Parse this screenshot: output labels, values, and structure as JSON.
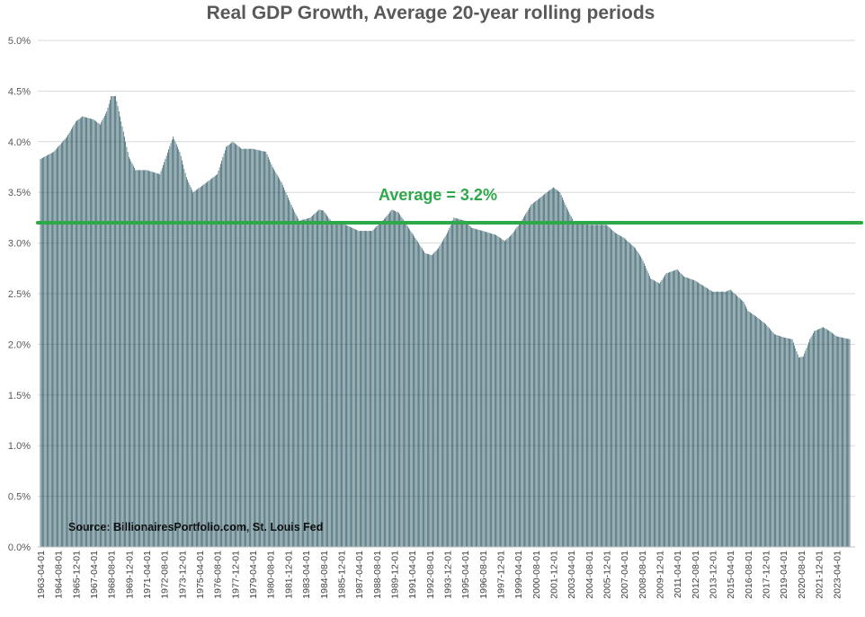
{
  "chart_data": {
    "type": "bar",
    "title": "Real GDP Growth, Average 20-year rolling periods",
    "xlabel": "",
    "ylabel": "",
    "ylim": [
      0,
      5.0
    ],
    "y_ticks": [
      "0.0%",
      "0.5%",
      "1.0%",
      "1.5%",
      "2.0%",
      "2.5%",
      "3.0%",
      "3.5%",
      "4.0%",
      "4.5%",
      "5.0%"
    ],
    "y_tick_values": [
      0,
      0.5,
      1.0,
      1.5,
      2.0,
      2.5,
      3.0,
      3.5,
      4.0,
      4.5,
      5.0
    ],
    "x_tick_labels": [
      "1963-04-01",
      "1964-08-01",
      "1965-12-01",
      "1967-04-01",
      "1968-08-01",
      "1969-12-01",
      "1971-04-01",
      "1972-08-01",
      "1973-12-01",
      "1975-04-01",
      "1976-08-01",
      "1977-12-01",
      "1979-04-01",
      "1980-08-01",
      "1981-12-01",
      "1983-04-01",
      "1984-08-01",
      "1985-12-01",
      "1987-04-01",
      "1988-08-01",
      "1989-12-01",
      "1991-04-01",
      "1992-08-01",
      "1993-12-01",
      "1995-04-01",
      "1996-08-01",
      "1997-12-01",
      "1999-04-01",
      "2000-08-01",
      "2001-12-01",
      "2003-04-01",
      "2004-08-01",
      "2005-12-01",
      "2007-04-01",
      "2008-08-01",
      "2009-12-01",
      "2011-04-01",
      "2012-08-01",
      "2013-12-01",
      "2015-04-01",
      "2016-08-01",
      "2017-12-01",
      "2019-04-01",
      "2020-08-01",
      "2021-12-01",
      "2023-04-01"
    ],
    "series": [
      {
        "color": "#1f4e5a",
        "x_start": "1963-04-01",
        "frequency": "monthly",
        "anchors": [
          [
            "1963-04-01",
            3.83
          ],
          [
            "1964-04-01",
            3.9
          ],
          [
            "1965-04-01",
            4.05
          ],
          [
            "1965-12-01",
            4.2
          ],
          [
            "1966-06-01",
            4.25
          ],
          [
            "1967-04-01",
            4.22
          ],
          [
            "1967-10-01",
            4.17
          ],
          [
            "1968-04-01",
            4.3
          ],
          [
            "1968-08-01",
            4.45
          ],
          [
            "1968-12-01",
            4.45
          ],
          [
            "1969-06-01",
            4.15
          ],
          [
            "1969-12-01",
            3.85
          ],
          [
            "1970-06-01",
            3.72
          ],
          [
            "1971-04-01",
            3.72
          ],
          [
            "1972-04-01",
            3.68
          ],
          [
            "1972-08-01",
            3.8
          ],
          [
            "1973-04-01",
            4.05
          ],
          [
            "1973-10-01",
            3.9
          ],
          [
            "1974-04-01",
            3.65
          ],
          [
            "1974-10-01",
            3.5
          ],
          [
            "1975-08-01",
            3.58
          ],
          [
            "1976-08-01",
            3.68
          ],
          [
            "1977-04-01",
            3.95
          ],
          [
            "1977-10-01",
            4.0
          ],
          [
            "1978-06-01",
            3.93
          ],
          [
            "1979-04-01",
            3.93
          ],
          [
            "1980-04-01",
            3.9
          ],
          [
            "1980-10-01",
            3.75
          ],
          [
            "1981-06-01",
            3.6
          ],
          [
            "1982-04-01",
            3.35
          ],
          [
            "1982-10-01",
            3.22
          ],
          [
            "1983-08-01",
            3.25
          ],
          [
            "1984-04-01",
            3.33
          ],
          [
            "1984-08-01",
            3.32
          ],
          [
            "1985-04-01",
            3.2
          ],
          [
            "1986-04-01",
            3.18
          ],
          [
            "1987-04-01",
            3.12
          ],
          [
            "1988-04-01",
            3.12
          ],
          [
            "1989-04-01",
            3.25
          ],
          [
            "1989-10-01",
            3.33
          ],
          [
            "1990-04-01",
            3.3
          ],
          [
            "1991-04-01",
            3.1
          ],
          [
            "1991-10-01",
            3.0
          ],
          [
            "1992-04-01",
            2.9
          ],
          [
            "1992-10-01",
            2.88
          ],
          [
            "1993-04-01",
            2.95
          ],
          [
            "1993-12-01",
            3.1
          ],
          [
            "1994-06-01",
            3.25
          ],
          [
            "1995-04-01",
            3.22
          ],
          [
            "1995-10-01",
            3.15
          ],
          [
            "1996-08-01",
            3.12
          ],
          [
            "1997-08-01",
            3.08
          ],
          [
            "1998-04-01",
            3.02
          ],
          [
            "1998-10-01",
            3.08
          ],
          [
            "1999-06-01",
            3.2
          ],
          [
            "2000-04-01",
            3.38
          ],
          [
            "2000-10-01",
            3.43
          ],
          [
            "2001-06-01",
            3.5
          ],
          [
            "2001-12-01",
            3.55
          ],
          [
            "2002-06-01",
            3.5
          ],
          [
            "2002-12-01",
            3.35
          ],
          [
            "2003-06-01",
            3.22
          ],
          [
            "2004-08-01",
            3.18
          ],
          [
            "2005-12-01",
            3.18
          ],
          [
            "2006-08-01",
            3.1
          ],
          [
            "2007-04-01",
            3.05
          ],
          [
            "2008-02-01",
            2.95
          ],
          [
            "2008-08-01",
            2.85
          ],
          [
            "2009-04-01",
            2.65
          ],
          [
            "2009-12-01",
            2.6
          ],
          [
            "2010-06-01",
            2.7
          ],
          [
            "2011-04-01",
            2.74
          ],
          [
            "2011-10-01",
            2.67
          ],
          [
            "2012-08-01",
            2.63
          ],
          [
            "2013-12-01",
            2.52
          ],
          [
            "2014-12-01",
            2.52
          ],
          [
            "2015-04-01",
            2.54
          ],
          [
            "2016-04-01",
            2.42
          ],
          [
            "2016-08-01",
            2.33
          ],
          [
            "2017-04-01",
            2.27
          ],
          [
            "2017-12-01",
            2.2
          ],
          [
            "2018-08-01",
            2.1
          ],
          [
            "2019-04-01",
            2.07
          ],
          [
            "2019-12-01",
            2.05
          ],
          [
            "2020-06-01",
            1.87
          ],
          [
            "2020-10-01",
            1.88
          ],
          [
            "2021-04-01",
            2.05
          ],
          [
            "2021-08-01",
            2.13
          ],
          [
            "2022-04-01",
            2.17
          ],
          [
            "2022-10-01",
            2.13
          ],
          [
            "2023-04-01",
            2.08
          ],
          [
            "2024-04-01",
            2.05
          ]
        ]
      }
    ],
    "average": {
      "value": 3.2,
      "label": "Average = 3.2%",
      "color": "#2ea84a"
    },
    "source_note": "Source: BillionairesPortfolio.com, St. Louis Fed",
    "grid": true,
    "legend": "none"
  }
}
